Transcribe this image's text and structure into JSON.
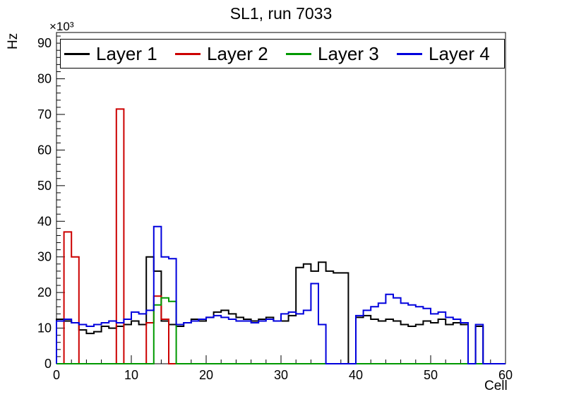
{
  "chart_data": {
    "type": "line",
    "style": "step-histogram",
    "title": "SL1, run 7033",
    "xlabel": "Cell",
    "ylabel": "Hz",
    "y_scale_label": "×10³",
    "y_unit_factor": 1000,
    "xlim": [
      0,
      60
    ],
    "ylim": [
      0,
      93
    ],
    "x_major_ticks": [
      0,
      10,
      20,
      30,
      40,
      50,
      60
    ],
    "x_minor_step": 2,
    "y_major_ticks": [
      0,
      10,
      20,
      30,
      40,
      50,
      60,
      70,
      80,
      90
    ],
    "y_minor_step": 2,
    "bin_width": 1,
    "grid": false,
    "legend_position": "top-inside",
    "series": [
      {
        "name": "Layer 1",
        "color": "#000000",
        "values": [
          12.5,
          12.0,
          11.5,
          9.5,
          8.5,
          9.0,
          10.5,
          10.0,
          10.5,
          11.0,
          12.0,
          11.0,
          30.0,
          26.0,
          12.0,
          11.0,
          10.5,
          11.5,
          12.5,
          12.0,
          13.0,
          14.5,
          15.0,
          14.0,
          13.0,
          12.5,
          12.0,
          12.5,
          13.0,
          12.0,
          12.0,
          13.5,
          27.0,
          28.0,
          26.0,
          28.5,
          26.0,
          25.5,
          25.5,
          0.0,
          13.0,
          13.5,
          12.5,
          12.0,
          12.5,
          12.0,
          11.0,
          10.5,
          11.0,
          12.0,
          11.5,
          12.5,
          11.0,
          11.5,
          11.0,
          0.0,
          10.5,
          0.0,
          0.0,
          0.0
        ]
      },
      {
        "name": "Layer 2",
        "color": "#cc0000",
        "values": [
          0.0,
          37.0,
          30.0,
          0.0,
          0.0,
          0.0,
          0.0,
          0.0,
          71.5,
          0.0,
          0.0,
          0.0,
          11.5,
          19.0,
          12.5,
          0.0,
          0.0,
          0.0,
          0.0,
          0.0,
          0.0,
          0.0,
          0.0,
          0.0,
          0.0,
          0.0,
          0.0,
          0.0,
          0.0,
          0.0,
          0.0,
          0.0,
          0.0,
          0.0,
          0.0,
          0.0,
          0.0,
          0.0,
          0.0,
          0.0,
          0.0,
          0.0,
          0.0,
          0.0,
          0.0,
          0.0,
          0.0,
          0.0,
          0.0,
          0.0,
          0.0,
          0.0,
          0.0,
          0.0,
          0.0,
          0.0,
          0.0,
          0.0,
          0.0,
          0.0
        ]
      },
      {
        "name": "Layer 3",
        "color": "#009900",
        "values": [
          0.0,
          0.0,
          0.0,
          0.0,
          0.0,
          0.0,
          0.0,
          0.0,
          0.0,
          0.0,
          0.0,
          0.0,
          0.0,
          16.5,
          18.5,
          17.5,
          0.0,
          0.0,
          0.0,
          0.0,
          0.0,
          0.0,
          0.0,
          0.0,
          0.0,
          0.0,
          0.0,
          0.0,
          0.0,
          0.0,
          0.0,
          0.0,
          0.0,
          0.0,
          0.0,
          0.0,
          0.0,
          0.0,
          0.0,
          0.0,
          0.0,
          0.0,
          0.0,
          0.0,
          0.0,
          0.0,
          0.0,
          0.0,
          0.0,
          0.0,
          0.0,
          0.0,
          0.0,
          0.0,
          0.0,
          0.0,
          0.0,
          0.0,
          0.0,
          0.0
        ]
      },
      {
        "name": "Layer 4",
        "color": "#0000dd",
        "values": [
          12.0,
          12.5,
          11.5,
          11.0,
          10.5,
          11.0,
          11.5,
          12.0,
          11.5,
          12.5,
          14.5,
          14.0,
          15.0,
          38.5,
          30.0,
          29.5,
          11.0,
          11.5,
          12.0,
          12.5,
          13.0,
          13.5,
          13.0,
          12.5,
          12.0,
          12.0,
          11.5,
          12.0,
          12.5,
          12.0,
          14.0,
          14.5,
          14.0,
          15.0,
          22.5,
          11.0,
          0.0,
          0.0,
          0.0,
          0.0,
          13.5,
          15.0,
          16.0,
          17.0,
          19.5,
          18.5,
          17.0,
          16.5,
          16.0,
          15.5,
          14.0,
          14.5,
          13.0,
          12.5,
          11.5,
          0.0,
          11.0,
          0.0,
          0.0,
          0.0
        ]
      }
    ]
  }
}
